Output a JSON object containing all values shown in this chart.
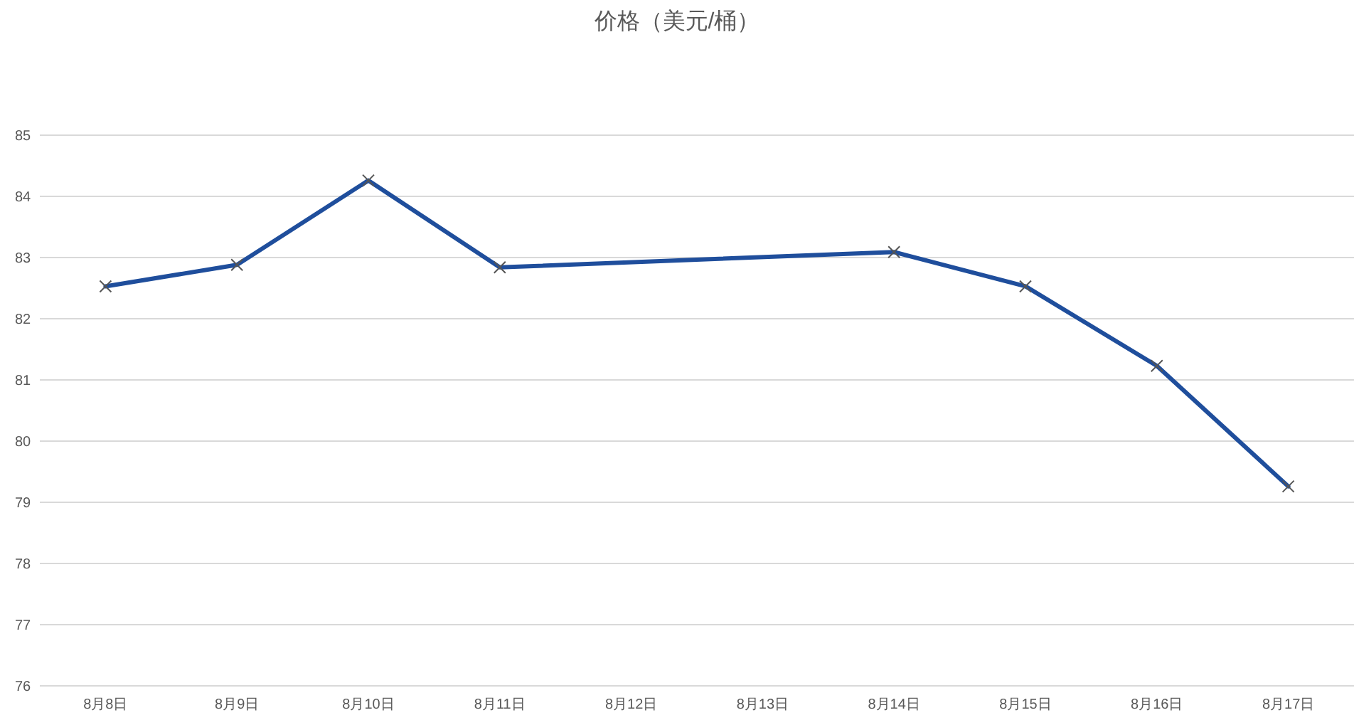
{
  "chart_data": {
    "type": "line",
    "title": "价格（美元/桶）",
    "categories": [
      "8月8日",
      "8月9日",
      "8月10日",
      "8月11日",
      "8月12日",
      "8月13日",
      "8月14日",
      "8月15日",
      "8月16日",
      "8月17日"
    ],
    "series": [
      {
        "color": "#1f4e9c",
        "values": [
          82.53,
          82.88,
          84.26,
          82.84,
          null,
          null,
          83.09,
          82.53,
          81.23,
          79.26
        ]
      }
    ],
    "ylim": [
      76,
      85
    ],
    "yticks": [
      76,
      77,
      78,
      79,
      80,
      81,
      82,
      83,
      84,
      85
    ],
    "grid": "y",
    "marker": "cross",
    "line_style": "solid"
  }
}
